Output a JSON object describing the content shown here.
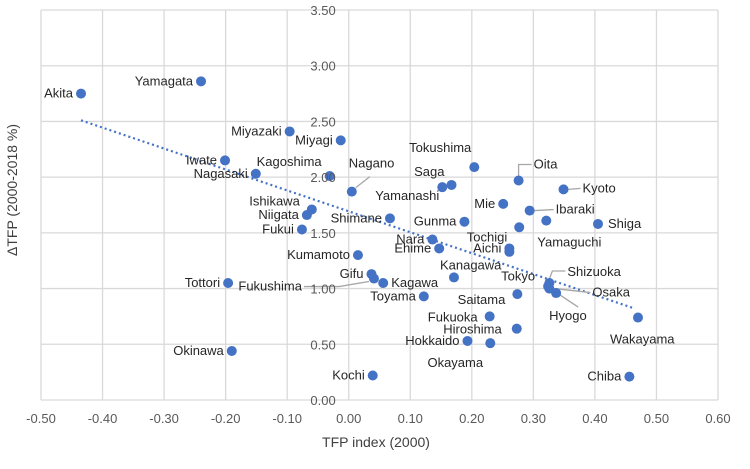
{
  "chart_data": {
    "type": "scatter",
    "title": "",
    "xlabel": "TFP index (2000)",
    "ylabel": "ΔTFP (2000-2018 %)",
    "xlim": [
      -0.5,
      0.6
    ],
    "ylim": [
      0,
      3.5
    ],
    "x_ticks": [
      "-0.50",
      "-0.40",
      "-0.30",
      "-0.20",
      "-0.10",
      "0.00",
      "0.10",
      "0.20",
      "0.30",
      "0.40",
      "0.50",
      "0.60"
    ],
    "y_ticks": [
      "0.00",
      "0.50",
      "1.00",
      "1.50",
      "2.00",
      "2.50",
      "3.00",
      "3.50"
    ],
    "grid": true,
    "marker_color": "#4472C4",
    "trendline": {
      "type": "linear",
      "style": "dotted",
      "x": [
        -0.435,
        0.465
      ],
      "y": [
        2.51,
        0.82
      ]
    },
    "points": [
      {
        "label": "Akita",
        "x": -0.435,
        "y": 2.75
      },
      {
        "label": "Yamagata",
        "x": -0.24,
        "y": 2.86
      },
      {
        "label": "Miyazaki",
        "x": -0.096,
        "y": 2.41
      },
      {
        "label": "Miyagi",
        "x": -0.013,
        "y": 2.33
      },
      {
        "label": "Iwate",
        "x": -0.201,
        "y": 2.15
      },
      {
        "label": "Nagasaki",
        "x": -0.151,
        "y": 2.03
      },
      {
        "label": "Kagoshima",
        "x": -0.031,
        "y": 2.01
      },
      {
        "label": "Nagano",
        "x": 0.005,
        "y": 1.87
      },
      {
        "label": "Ishikawa",
        "x": -0.06,
        "y": 1.71
      },
      {
        "label": "Niigata",
        "x": -0.068,
        "y": 1.66
      },
      {
        "label": "Fukui",
        "x": -0.076,
        "y": 1.53
      },
      {
        "label": "Shimane",
        "x": 0.067,
        "y": 1.63
      },
      {
        "label": "Kumamoto",
        "x": 0.015,
        "y": 1.3
      },
      {
        "label": "Gifu",
        "x": 0.037,
        "y": 1.13
      },
      {
        "label": "Fukushima",
        "x": 0.041,
        "y": 1.09
      },
      {
        "label": "Kagawa",
        "x": 0.056,
        "y": 1.05
      },
      {
        "label": "Tottori",
        "x": -0.196,
        "y": 1.05
      },
      {
        "label": "Okinawa",
        "x": -0.19,
        "y": 0.44
      },
      {
        "label": "Kochi",
        "x": 0.039,
        "y": 0.22
      },
      {
        "label": "Tokushima",
        "x": 0.204,
        "y": 2.09
      },
      {
        "label": "Oita",
        "x": 0.276,
        "y": 1.97
      },
      {
        "label": "Kyoto",
        "x": 0.349,
        "y": 1.89
      },
      {
        "label": "Saga",
        "x": 0.167,
        "y": 1.93
      },
      {
        "label": "Yamanashi",
        "x": 0.152,
        "y": 1.91
      },
      {
        "label": "Mie",
        "x": 0.251,
        "y": 1.76
      },
      {
        "label": "Ibaraki",
        "x": 0.294,
        "y": 1.7
      },
      {
        "label": "Yamaguchi",
        "x": 0.321,
        "y": 1.61
      },
      {
        "label": "Shiga",
        "x": 0.405,
        "y": 1.58
      },
      {
        "label": "Tochigi",
        "x": 0.277,
        "y": 1.55
      },
      {
        "label": "Gunma",
        "x": 0.188,
        "y": 1.6
      },
      {
        "label": "Nara",
        "x": 0.136,
        "y": 1.44
      },
      {
        "label": "Ehime",
        "x": 0.147,
        "y": 1.36
      },
      {
        "label": "Aichi",
        "x": 0.261,
        "y": 1.36
      },
      {
        "label": "",
        "x": 0.261,
        "y": 1.33
      },
      {
        "label": "Kanagawa",
        "x": 0.171,
        "y": 1.1
      },
      {
        "label": "Toyama",
        "x": 0.122,
        "y": 0.93
      },
      {
        "label": "Saitama",
        "x": 0.274,
        "y": 0.95
      },
      {
        "label": "Shizuoka",
        "x": 0.326,
        "y": 1.05
      },
      {
        "label": "Tokyo",
        "x": 0.324,
        "y": 1.02
      },
      {
        "label": "Osaka",
        "x": 0.326,
        "y": 1.0
      },
      {
        "label": "Hyogo",
        "x": 0.337,
        "y": 0.96
      },
      {
        "label": "Wakayama",
        "x": 0.47,
        "y": 0.74
      },
      {
        "label": "Fukuoka",
        "x": 0.229,
        "y": 0.75
      },
      {
        "label": "Hiroshima",
        "x": 0.273,
        "y": 0.64
      },
      {
        "label": "Hokkaido",
        "x": 0.193,
        "y": 0.53
      },
      {
        "label": "Okayama",
        "x": 0.23,
        "y": 0.51
      },
      {
        "label": "Chiba",
        "x": 0.456,
        "y": 0.21
      }
    ]
  }
}
